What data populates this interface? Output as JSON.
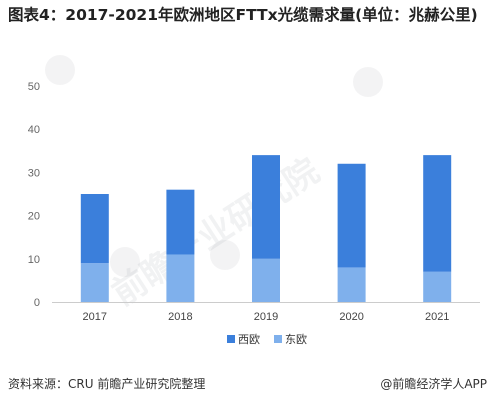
{
  "title": "图表4：2017-2021年欧洲地区FTTx光缆需求量(单位：兆赫公里)",
  "source": "资料来源：CRU 前瞻产业研究院整理",
  "brand": "@前瞻经济学人APP",
  "watermark": "前瞻产业研究院",
  "colors": {
    "west": "#3b7fdb",
    "east": "#7fb0ec",
    "axis": "#cccccc",
    "tick": "#666666"
  },
  "chart_data": {
    "type": "bar",
    "stacked": true,
    "categories": [
      "2017",
      "2018",
      "2019",
      "2020",
      "2021"
    ],
    "series": [
      {
        "name": "东欧",
        "values": [
          9,
          11,
          10,
          8,
          7
        ]
      },
      {
        "name": "西欧",
        "values": [
          16,
          15,
          24,
          24,
          27
        ]
      }
    ],
    "ylim": [
      0,
      50
    ],
    "yticks": [
      0,
      10,
      20,
      30,
      40,
      50
    ],
    "grid": false,
    "legend": "bottom-center",
    "legend_order": [
      "西欧",
      "东欧"
    ]
  }
}
